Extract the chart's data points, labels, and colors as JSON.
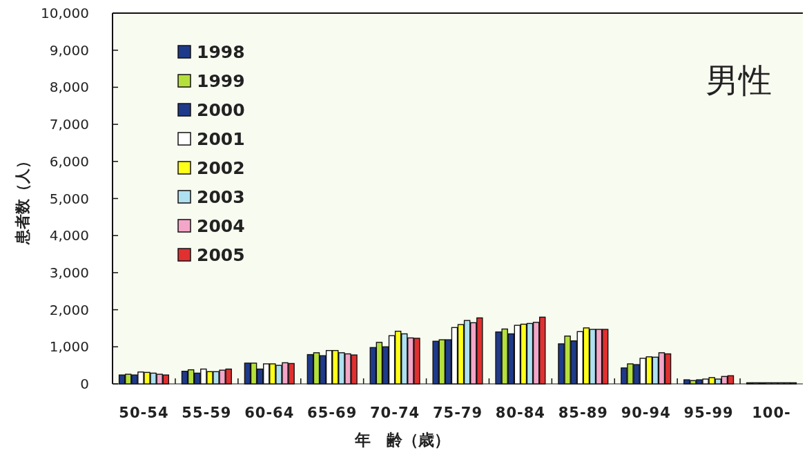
{
  "chart_data": {
    "type": "bar",
    "title": "男性",
    "xlabel": "年　齢（歳）",
    "ylabel": "患者数（人）",
    "categories": [
      "50-54",
      "55-59",
      "60-64",
      "65-69",
      "70-74",
      "75-79",
      "80-84",
      "85-89",
      "90-94",
      "95-99",
      "100-"
    ],
    "series": [
      {
        "name": "1998",
        "color": "#1f3a8a",
        "values": [
          240,
          340,
          560,
          790,
          980,
          1150,
          1400,
          1080,
          430,
          110,
          30
        ]
      },
      {
        "name": "1999",
        "color": "#b5e03c",
        "values": [
          260,
          380,
          560,
          840,
          1120,
          1190,
          1480,
          1290,
          540,
          90,
          30
        ]
      },
      {
        "name": "2000",
        "color": "#1f3a8a",
        "values": [
          240,
          290,
          400,
          760,
          1000,
          1190,
          1350,
          1160,
          520,
          110,
          30
        ]
      },
      {
        "name": "2001",
        "color": "#ffffff",
        "values": [
          320,
          400,
          540,
          900,
          1300,
          1520,
          1580,
          1410,
          690,
          130,
          30
        ]
      },
      {
        "name": "2002",
        "color": "#ffff1a",
        "values": [
          310,
          330,
          540,
          900,
          1420,
          1600,
          1610,
          1510,
          730,
          170,
          30
        ]
      },
      {
        "name": "2003",
        "color": "#aee0f0",
        "values": [
          290,
          330,
          500,
          840,
          1350,
          1710,
          1630,
          1470,
          720,
          130,
          30
        ]
      },
      {
        "name": "2004",
        "color": "#f4a6c8",
        "values": [
          260,
          370,
          570,
          810,
          1240,
          1650,
          1660,
          1470,
          840,
          200,
          30
        ]
      },
      {
        "name": "2005",
        "color": "#e03030",
        "values": [
          240,
          400,
          550,
          780,
          1230,
          1780,
          1800,
          1470,
          810,
          220,
          30
        ]
      }
    ],
    "ylim": [
      0,
      10000
    ],
    "yticks": [
      {
        "value": 0,
        "label": "0"
      },
      {
        "value": 1000,
        "label": "1,000"
      },
      {
        "value": 2000,
        "label": "2,000"
      },
      {
        "value": 3000,
        "label": "3,000"
      },
      {
        "value": 4000,
        "label": "4,000"
      },
      {
        "value": 5000,
        "label": "5,000"
      },
      {
        "value": 6000,
        "label": "6,000"
      },
      {
        "value": 7000,
        "label": "7,000"
      },
      {
        "value": 8000,
        "label": "8,000"
      },
      {
        "value": 9000,
        "label": "9,000"
      },
      {
        "value": 10000,
        "label": "10,000"
      }
    ],
    "legend": "top left"
  }
}
